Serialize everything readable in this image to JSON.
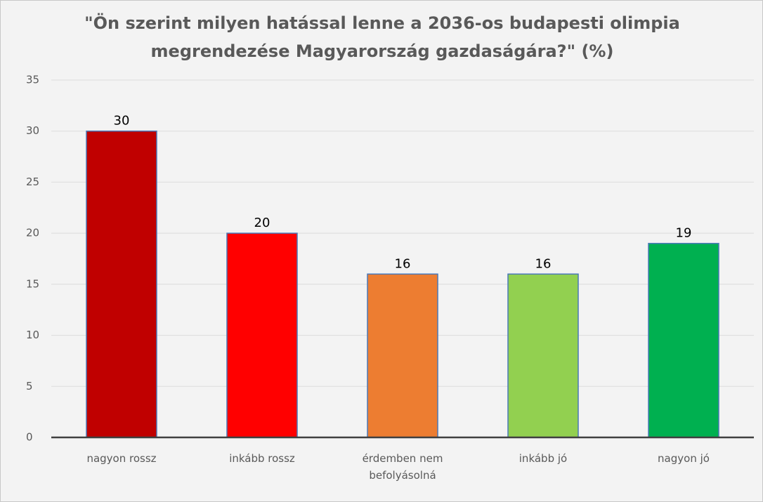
{
  "chart_data": {
    "type": "bar",
    "title": "\"Ön szerint milyen hatással lenne a 2036-os budapesti olimpia megrendezése Magyarország gazdaságára?\" (%)",
    "categories": [
      "nagyon rossz",
      "inkább rossz",
      "érdemben nem befolyásolná",
      "inkább jó",
      "nagyon jó"
    ],
    "values": [
      30,
      20,
      16,
      16,
      19
    ],
    "colors": [
      "#c00000",
      "#ff0000",
      "#ed7d31",
      "#92d050",
      "#00b050"
    ],
    "ylim": [
      0,
      35
    ],
    "yticks": [
      0,
      5,
      10,
      15,
      20,
      25,
      30,
      35
    ],
    "grid": true
  }
}
